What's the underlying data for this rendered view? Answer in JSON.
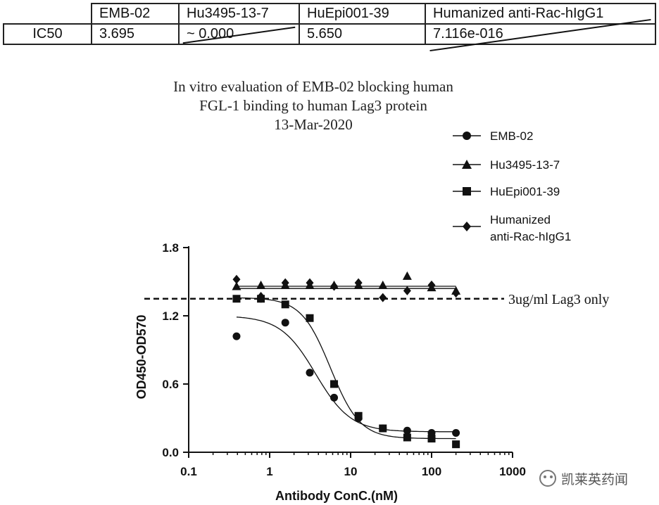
{
  "ic50_table": {
    "row_label": "IC50",
    "columns": [
      {
        "name": "EMB-02",
        "value": "3.695",
        "struck": false
      },
      {
        "name": "Hu3495-13-7",
        "value": "~ 0.000",
        "struck": true
      },
      {
        "name": "HuEpi001-39",
        "value": "5.650",
        "struck": false
      },
      {
        "name": "Humanized anti-Rac-hIgG1",
        "value": "7.116e-016",
        "struck": true
      }
    ]
  },
  "chart_title": {
    "line1": "In vitro evaluation of EMB-02 blocking human",
    "line2": "FGL-1 binding to human Lag3 protein",
    "line3": "13-Mar-2020"
  },
  "watermark": "凯莱英药闻",
  "colors": {
    "ink": "#111111",
    "background": "#ffffff"
  },
  "chart_data": {
    "type": "scatter",
    "xscale": "log",
    "xlim": [
      0.1,
      1000
    ],
    "ylim": [
      0.0,
      1.8
    ],
    "xticks": [
      0.1,
      1,
      10,
      100,
      1000
    ],
    "xtick_labels": [
      "0.1",
      "1",
      "10",
      "100",
      "1000"
    ],
    "yticks": [
      0.0,
      0.6,
      1.2,
      1.8
    ],
    "ytick_labels": [
      "0.0",
      "0.6",
      "1.2",
      "1.8"
    ],
    "xlabel": "Antibody ConC.(nM)",
    "ylabel": "OD450-OD570",
    "legend_position": "top-right",
    "x": [
      0.39,
      0.78,
      1.56,
      3.13,
      6.25,
      12.5,
      25,
      50,
      100,
      200
    ],
    "series": [
      {
        "name": "EMB-02",
        "marker": "circle",
        "values": [
          1.02,
          1.35,
          1.14,
          0.7,
          0.48,
          0.3,
          0.21,
          0.19,
          0.17,
          0.17
        ],
        "fit": {
          "bottom": 0.18,
          "top": 1.2,
          "ic50": 3.695,
          "hill": -2.0
        }
      },
      {
        "name": "Hu3495-13-7",
        "marker": "triangle",
        "values": [
          1.46,
          1.47,
          1.47,
          1.47,
          1.47,
          1.47,
          1.47,
          1.55,
          1.45,
          1.42
        ],
        "fit": {
          "flat": 1.46
        }
      },
      {
        "name": "HuEpi001-39",
        "marker": "square",
        "values": [
          1.35,
          1.35,
          1.3,
          1.18,
          0.6,
          0.32,
          0.21,
          0.13,
          0.12,
          0.07
        ],
        "fit": {
          "bottom": 0.12,
          "top": 1.36,
          "ic50": 5.65,
          "hill": -2.4
        }
      },
      {
        "name": "Humanized\nanti-Rac-hIgG1",
        "marker": "diamond",
        "values": [
          1.52,
          1.37,
          1.49,
          1.49,
          1.46,
          1.49,
          1.36,
          1.42,
          1.47,
          1.4
        ],
        "fit": {
          "flat": 1.44
        }
      }
    ],
    "reference_line": {
      "y": 1.35,
      "label": "3ug/ml Lag3 only",
      "style": "dashed"
    }
  }
}
